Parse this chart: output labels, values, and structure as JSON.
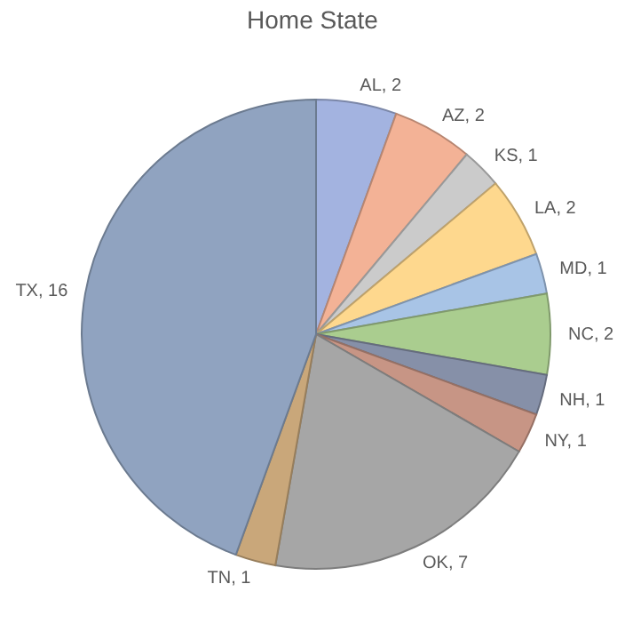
{
  "chart_data": {
    "type": "pie",
    "title": "Home State",
    "categories": [
      "AL",
      "AZ",
      "KS",
      "LA",
      "MD",
      "NC",
      "NH",
      "NY",
      "OK",
      "TN",
      "TX"
    ],
    "values": [
      2,
      2,
      1,
      2,
      1,
      2,
      1,
      1,
      7,
      1,
      16
    ],
    "colors": [
      "#a3b3e0",
      "#f3b296",
      "#cbcbcb",
      "#fed88e",
      "#a8c4e6",
      "#aacd8f",
      "#8690a8",
      "#c79585",
      "#a6a6a6",
      "#c9a77a",
      "#90a3c0"
    ],
    "value_labels": [
      ", 2",
      ", 2",
      ", 1",
      ", 2",
      ", 1",
      ", 2",
      ", 1",
      ", 1",
      ", 7",
      ", 1",
      ", 16"
    ],
    "legend": false
  }
}
